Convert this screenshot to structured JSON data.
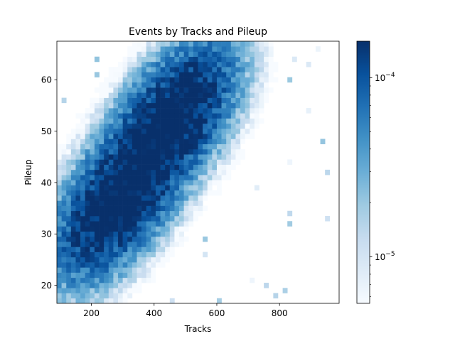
{
  "chart_data": {
    "type": "heatmap",
    "title": "Events by Tracks and Pileup",
    "xlabel": "Tracks",
    "ylabel": "Pileup",
    "xlim": [
      90,
      990
    ],
    "ylim": [
      16.5,
      67.5
    ],
    "x_ticks": [
      200,
      400,
      600,
      800
    ],
    "x_tick_labels": [
      "200",
      "400",
      "600",
      "800"
    ],
    "y_ticks": [
      20,
      30,
      40,
      50,
      60
    ],
    "y_tick_labels": [
      "20",
      "30",
      "40",
      "50",
      "60"
    ],
    "x_bins": 60,
    "y_bins": 51,
    "density_peaks": [
      {
        "tracks": 330,
        "pileup": 29,
        "density": 0.00012
      },
      {
        "tracks": 440,
        "pileup": 36,
        "density": 0.00014
      },
      {
        "tracks": 560,
        "pileup": 49,
        "density": 0.00014
      },
      {
        "tracks": 640,
        "pileup": 50,
        "density": 0.00012
      }
    ],
    "colorbar": {
      "scale": "log",
      "min": 5.5e-06,
      "max": 0.00016,
      "major_ticks": [
        1e-05,
        0.0001
      ],
      "major_tick_labels": [
        "10",
        "10"
      ],
      "major_tick_exponents": [
        "−5",
        "−4"
      ],
      "colormap": "Blues"
    },
    "grid": false,
    "colors": {
      "low": "#f7fbff",
      "mid": "#4292c6",
      "high": "#08306b"
    }
  }
}
